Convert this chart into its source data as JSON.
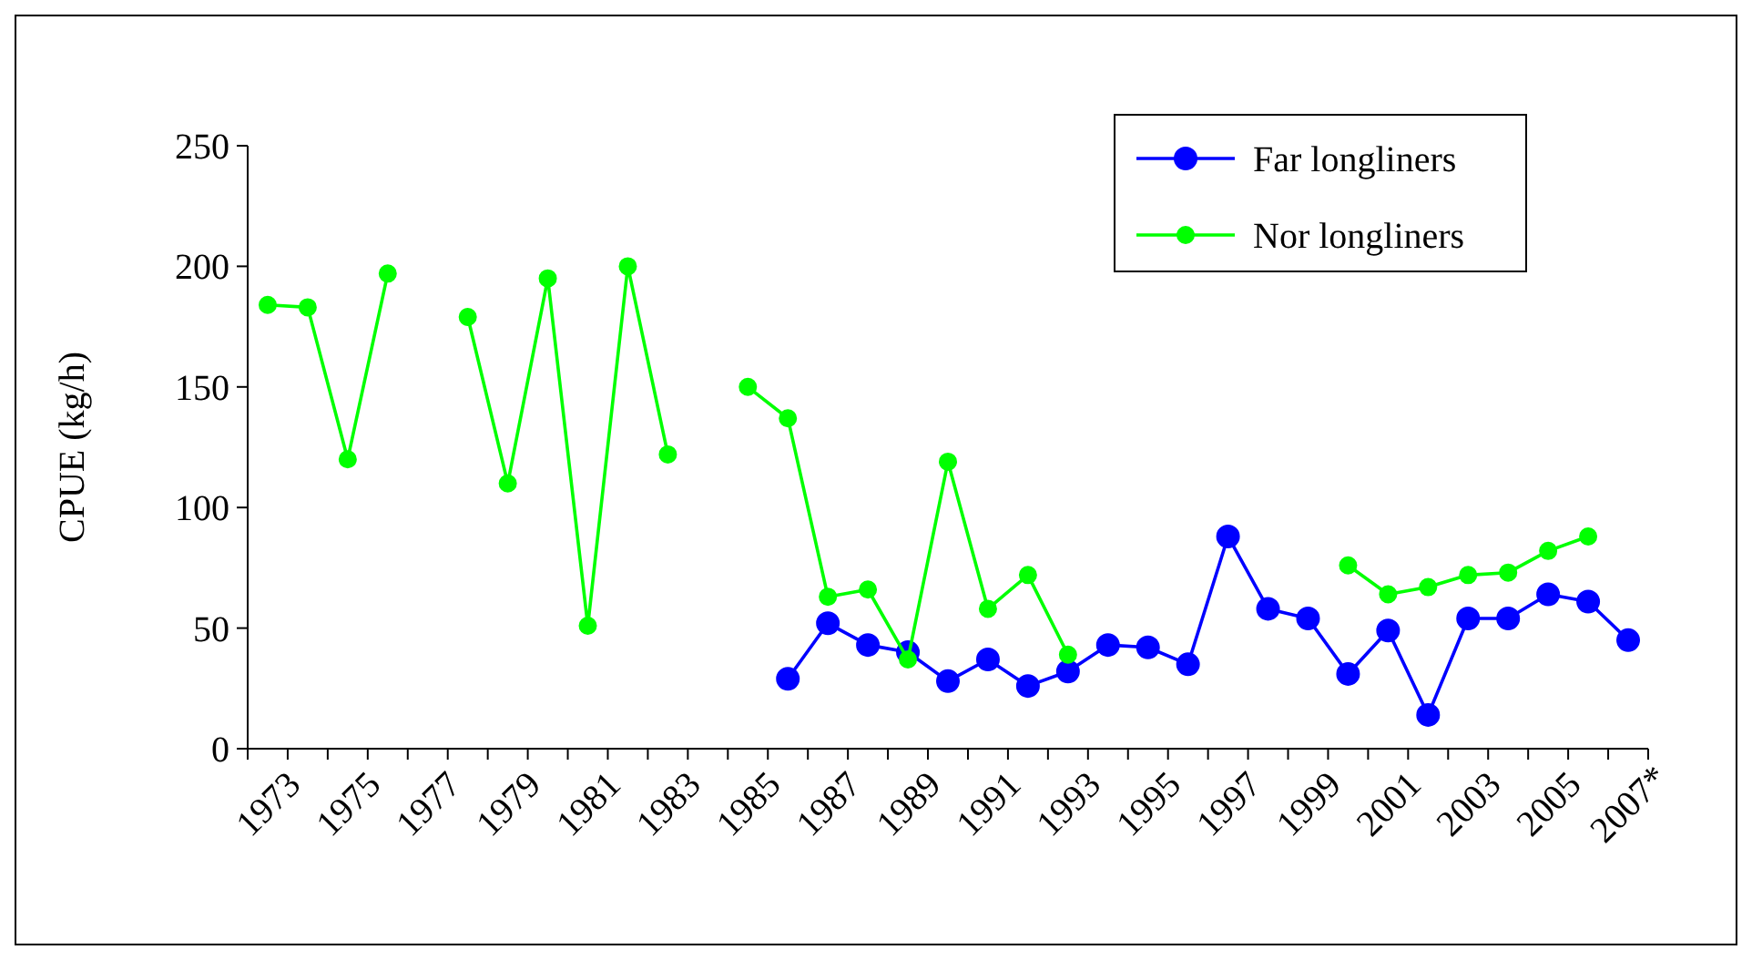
{
  "chart_data": {
    "type": "line",
    "ylabel": "CPUE (kg/h)",
    "categories": [
      "1973",
      null,
      "1975",
      null,
      "1977",
      null,
      "1979",
      null,
      "1981",
      null,
      "1983",
      null,
      "1985",
      null,
      "1987",
      null,
      "1989",
      null,
      "1991",
      null,
      "1993",
      null,
      "1995",
      null,
      "1997",
      null,
      "1999",
      null,
      "2001",
      null,
      "2003",
      null,
      "2005",
      null,
      "2007*"
    ],
    "series": [
      {
        "name": "Far longliners",
        "color": "#0000ff",
        "values": [
          null,
          null,
          null,
          null,
          null,
          null,
          null,
          null,
          null,
          null,
          null,
          null,
          null,
          29,
          52,
          43,
          40,
          28,
          37,
          26,
          32,
          43,
          42,
          35,
          88,
          58,
          54,
          31,
          49,
          14,
          54,
          54,
          64,
          61,
          45
        ]
      },
      {
        "name": "Nor longliners",
        "color": "#00ff00",
        "values": [
          184,
          183,
          120,
          197,
          null,
          179,
          110,
          195,
          51,
          200,
          122,
          null,
          150,
          137,
          63,
          66,
          37,
          119,
          58,
          72,
          39,
          null,
          null,
          null,
          null,
          null,
          null,
          76,
          64,
          67,
          72,
          73,
          82,
          88,
          null
        ]
      }
    ],
    "ylim": [
      0,
      250
    ],
    "yticks": [
      0,
      50,
      100,
      150,
      200,
      250
    ],
    "grid": false,
    "legend": "top right",
    "marker": "circle",
    "line_style": "solid"
  }
}
